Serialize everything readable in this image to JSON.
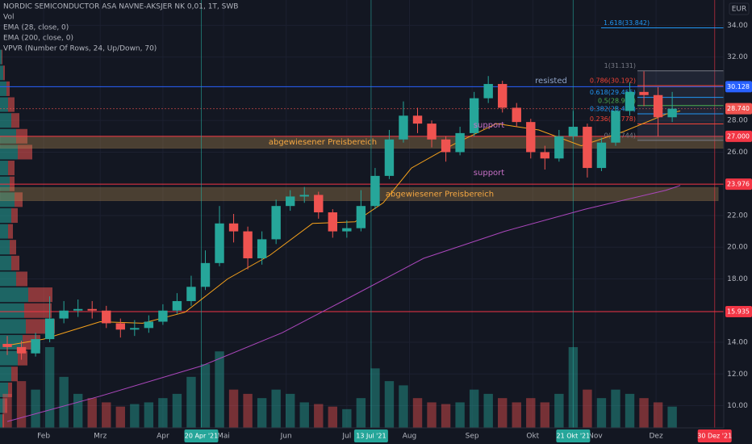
{
  "chart_data": {
    "type": "candlestick",
    "title": "NORDIC SEMICONDUCTOR ASA NAVNE-AKSJER NK 0,01, 1T, SWB",
    "volume_name": "Vol",
    "vpvr_name": "VPVR (Number Of Rows, 24, Up/Down, 70)",
    "currency": "EUR",
    "up_color": "#26a69a",
    "down_color": "#ef5350",
    "xlim": [
      10.4,
      368.5
    ],
    "xticks": [
      {
        "value": 32,
        "label": "Feb"
      },
      {
        "value": 60,
        "label": "Mrz"
      },
      {
        "value": 91,
        "label": "Apr"
      },
      {
        "value": 121,
        "label": "Mai"
      },
      {
        "value": 152,
        "label": "Jun"
      },
      {
        "value": 182,
        "label": "Jul"
      },
      {
        "value": 213,
        "label": "Aug"
      },
      {
        "value": 244,
        "label": "Sep"
      },
      {
        "value": 274,
        "label": "Okt"
      },
      {
        "value": 305,
        "label": "Nov"
      },
      {
        "value": 335,
        "label": "Dez"
      }
    ],
    "ylim": [
      8.6,
      35.6
    ],
    "yticks": [
      {
        "value": 34,
        "label": "34.00"
      },
      {
        "value": 32,
        "label": "32.00"
      },
      {
        "value": 28,
        "label": "28.00"
      },
      {
        "value": 26,
        "label": "26.00"
      },
      {
        "value": 22,
        "label": "22.00"
      },
      {
        "value": 20,
        "label": "20.00"
      },
      {
        "value": 18,
        "label": "18.00"
      },
      {
        "value": 14,
        "label": "14.00"
      },
      {
        "value": 12,
        "label": "12.00"
      },
      {
        "value": 10,
        "label": "10.00"
      }
    ],
    "grid": true,
    "candles": {
      "x": [
        14,
        21,
        28,
        35,
        42,
        49,
        56,
        63,
        70,
        77,
        84,
        91,
        98,
        105,
        112,
        119,
        126,
        133,
        140,
        147,
        154,
        161,
        168,
        175,
        182,
        189,
        196,
        203,
        210,
        217,
        224,
        231,
        238,
        245,
        252,
        259,
        266,
        273,
        280,
        287,
        294,
        301,
        308,
        315,
        322,
        329,
        336,
        343
      ],
      "open": [
        13.9,
        13.7,
        13.3,
        14.2,
        15.5,
        16.0,
        16.1,
        16.0,
        15.2,
        14.8,
        14.9,
        15.3,
        16.0,
        16.6,
        17.5,
        19.0,
        21.5,
        21.0,
        19.3,
        20.5,
        22.6,
        23.2,
        23.3,
        22.2,
        21.0,
        21.2,
        22.6,
        24.5,
        26.8,
        28.3,
        27.8,
        26.8,
        26.0,
        27.2,
        29.4,
        30.3,
        28.8,
        27.9,
        26.0,
        25.6,
        27.0,
        27.6,
        25.0,
        26.6,
        28.6,
        29.8,
        29.6,
        28.2
      ],
      "high": [
        14.4,
        14.1,
        14.6,
        16.9,
        16.6,
        16.7,
        16.6,
        16.3,
        15.5,
        15.4,
        15.7,
        16.4,
        17.1,
        18.2,
        19.8,
        22.6,
        22.1,
        21.3,
        21.0,
        23.0,
        23.6,
        23.8,
        23.5,
        22.4,
        21.7,
        23.6,
        25.0,
        27.4,
        29.2,
        28.8,
        28.0,
        27.0,
        27.6,
        29.8,
        30.8,
        30.5,
        29.1,
        28.1,
        26.4,
        27.4,
        28.6,
        27.8,
        26.9,
        28.9,
        30.4,
        31.1,
        30.1,
        29.8
      ],
      "low": [
        13.2,
        12.9,
        13.1,
        14.0,
        15.2,
        15.6,
        15.5,
        14.9,
        14.3,
        14.4,
        14.6,
        15.1,
        15.8,
        16.3,
        17.3,
        18.8,
        20.3,
        18.6,
        18.9,
        20.2,
        22.3,
        22.8,
        21.8,
        20.6,
        20.6,
        21.0,
        22.4,
        24.3,
        26.6,
        27.2,
        26.3,
        25.4,
        25.8,
        27.0,
        29.1,
        28.5,
        27.6,
        25.6,
        24.9,
        25.4,
        26.8,
        24.4,
        24.8,
        26.4,
        28.3,
        28.9,
        27.0,
        27.9
      ],
      "close": [
        13.7,
        13.3,
        14.2,
        15.5,
        16.0,
        16.1,
        16.0,
        15.2,
        14.8,
        14.9,
        15.3,
        16.0,
        16.6,
        17.5,
        19.0,
        21.5,
        21.0,
        19.3,
        20.5,
        22.6,
        23.2,
        23.3,
        22.2,
        21.0,
        21.2,
        22.6,
        24.5,
        26.8,
        28.3,
        27.8,
        26.8,
        26.0,
        27.2,
        29.4,
        30.3,
        28.8,
        27.9,
        26.0,
        25.6,
        27.0,
        27.6,
        25.0,
        26.6,
        28.6,
        29.8,
        29.6,
        28.2,
        28.74
      ]
    },
    "volume": [
      40,
      55,
      45,
      95,
      60,
      40,
      35,
      30,
      25,
      28,
      30,
      35,
      40,
      60,
      75,
      90,
      45,
      40,
      35,
      45,
      40,
      30,
      28,
      25,
      22,
      35,
      70,
      55,
      50,
      35,
      30,
      28,
      30,
      45,
      40,
      35,
      30,
      35,
      30,
      40,
      95,
      45,
      35,
      45,
      40,
      35,
      30,
      25
    ],
    "series": [
      {
        "name": "EMA (28, close, 0)",
        "color": "#f7a21b",
        "x": [
          14,
          32,
          60,
          81,
          102,
          123,
          144,
          165,
          186,
          200,
          214,
          235,
          256,
          277,
          298,
          319,
          340,
          347
        ],
        "values": [
          13.8,
          14.2,
          15.3,
          15.2,
          15.9,
          18.0,
          19.5,
          21.5,
          21.6,
          22.8,
          25.0,
          26.5,
          27.8,
          27.4,
          26.4,
          27.3,
          28.4,
          28.6
        ]
      },
      {
        "name": "EMA (200, close, 0)",
        "color": "#ab47bc",
        "x": [
          14,
          60,
          110,
          150,
          180,
          220,
          260,
          300,
          340,
          347
        ],
        "values": [
          9.0,
          10.6,
          12.5,
          14.6,
          16.6,
          19.3,
          21.0,
          22.4,
          23.6,
          23.9
        ]
      }
    ],
    "vpvr": {
      "prices": [
        9,
        10,
        11,
        12,
        13,
        14,
        15,
        16,
        17,
        18,
        19,
        20,
        21,
        22,
        23,
        24,
        25,
        26,
        27,
        28,
        29,
        30,
        31,
        32
      ],
      "up": [
        3,
        6,
        10,
        14,
        22,
        28,
        32,
        30,
        35,
        20,
        14,
        12,
        10,
        14,
        18,
        12,
        10,
        22,
        20,
        14,
        10,
        8,
        4,
        2
      ],
      "down": [
        2,
        3,
        5,
        8,
        12,
        22,
        36,
        34,
        30,
        14,
        10,
        8,
        6,
        8,
        10,
        6,
        8,
        18,
        14,
        10,
        8,
        4,
        2,
        1
      ]
    },
    "price_lines": [
      {
        "value": 30.128,
        "label": "30.128",
        "color": "#2962ff"
      },
      {
        "value": 28.74,
        "label": "28.740",
        "color": "#ef5350"
      },
      {
        "value": 27.0,
        "label": "27.000",
        "color": "#f23645"
      },
      {
        "value": 23.976,
        "label": "23.976",
        "color": "#f23645"
      },
      {
        "value": 15.935,
        "label": "15.935",
        "color": "#f23645"
      }
    ],
    "zones": [
      {
        "top": 27.0,
        "bottom": 26.25,
        "label": "abgewiesener Preisbereich"
      },
      {
        "top": 23.76,
        "bottom": 22.94,
        "label": "abgewiesener Preisbereich"
      }
    ],
    "annotations": [
      {
        "text": "resisted",
        "value": 30.5,
        "color": "#8fa3c7"
      },
      {
        "text": "support",
        "value": 27.7,
        "color": "#c670c6"
      },
      {
        "text": "support",
        "value": 24.7,
        "color": "#c670c6"
      }
    ],
    "markers": [
      {
        "x": 110,
        "label": "20 Apr '21",
        "color": "#26a69a"
      },
      {
        "x": 194,
        "label": "13 Jul '21",
        "color": "#26a69a"
      },
      {
        "x": 294,
        "label": "21 Okt '21",
        "color": "#26a69a"
      },
      {
        "x": 364,
        "label": "30 Dez '21",
        "color": "#f23645"
      }
    ],
    "fib": [
      {
        "label": "1.618(33.842)",
        "value": 33.842,
        "color": "#2196f3"
      },
      {
        "label": "1(31.131)",
        "value": 31.131,
        "color": "#787b86"
      },
      {
        "label": "0.786(30.192)",
        "value": 30.192,
        "color": "#f44336"
      },
      {
        "label": "0.618(29.455)",
        "value": 29.455,
        "color": "#2196f3"
      },
      {
        "label": "0.5(28.938)",
        "value": 28.938,
        "color": "#4caf50"
      },
      {
        "label": "0.382(28.420)",
        "value": 28.42,
        "color": "#2196f3"
      },
      {
        "label": "0.236(27.778)",
        "value": 27.778,
        "color": "#f44336"
      },
      {
        "label": "0(26.744)",
        "value": 26.744,
        "color": "#787b86"
      }
    ]
  }
}
